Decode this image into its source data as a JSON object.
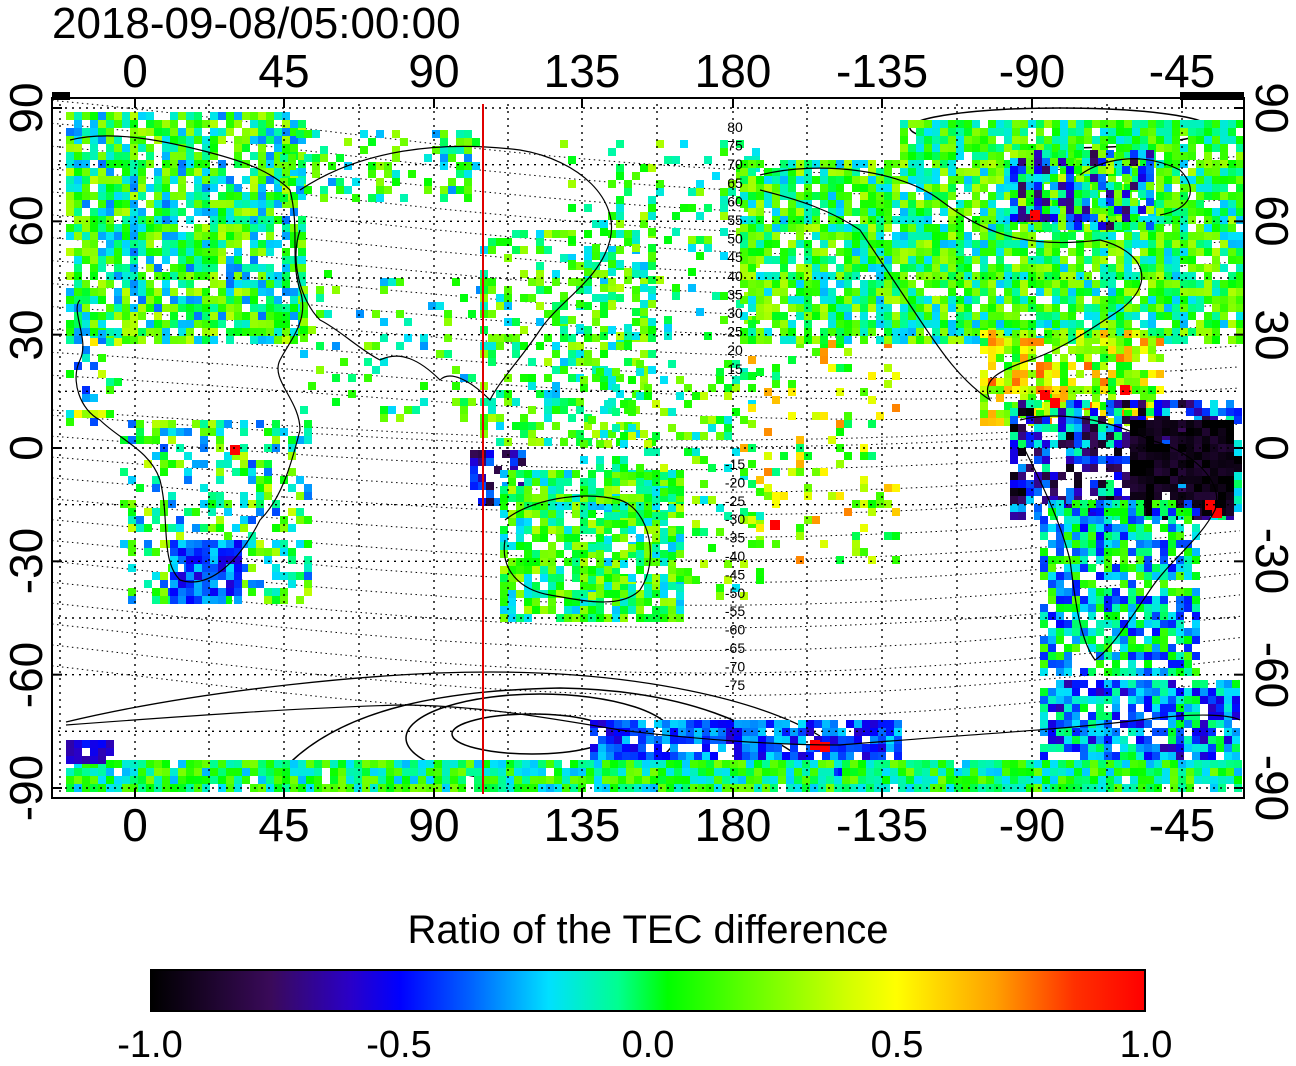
{
  "title": "2018-09-08/05:00:00",
  "lon_ticks_top": [
    "0",
    "45",
    "90",
    "135",
    "180",
    "-135",
    "-90",
    "-45"
  ],
  "lon_ticks_bottom": [
    "0",
    "45",
    "90",
    "135",
    "180",
    "-135",
    "-90",
    "-45"
  ],
  "lat_ticks_left": [
    "90",
    "60",
    "30",
    "0",
    "-30",
    "-60",
    "-90"
  ],
  "lat_ticks_right": [
    "90",
    "60",
    "30",
    "0",
    "-30",
    "-60",
    "-90"
  ],
  "contour_labels_north": [
    "80",
    "75",
    "70",
    "65",
    "60",
    "55",
    "50",
    "45",
    "40",
    "35",
    "30",
    "25",
    "20",
    "15"
  ],
  "contour_labels_south": [
    "-15",
    "-20",
    "-25",
    "-30",
    "-35",
    "-40",
    "-45",
    "-50",
    "-55",
    "-60",
    "-65",
    "-70",
    "-75"
  ],
  "colorbar": {
    "title": "Ratio of the TEC difference",
    "min_label": "-1.0",
    "labels": [
      "-1.0",
      "-0.5",
      "0.0",
      "0.5",
      "1.0"
    ]
  },
  "colors": {
    "terminator_line": "#e00000",
    "low": "#000000",
    "mid": "#00ff00",
    "high": "#ff0000"
  },
  "terminator_longitude": 105
}
